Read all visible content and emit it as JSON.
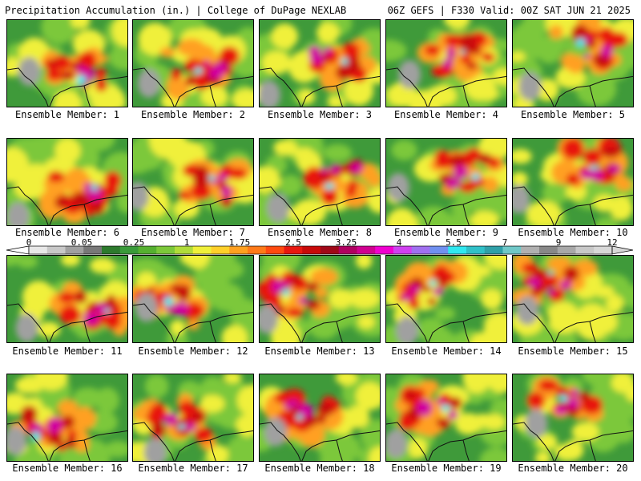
{
  "header": {
    "left_title": "Precipitation Accumulation (in.) | College of DuPage NEXLAB",
    "right_title": "06Z GEFS | F330 Valid: 00Z SAT JUN 21 2025"
  },
  "members": [
    {
      "label": "Ensemble Member: 1"
    },
    {
      "label": "Ensemble Member: 2"
    },
    {
      "label": "Ensemble Member: 3"
    },
    {
      "label": "Ensemble Member: 4"
    },
    {
      "label": "Ensemble Member: 5"
    },
    {
      "label": "Ensemble Member: 6"
    },
    {
      "label": "Ensemble Member: 7"
    },
    {
      "label": "Ensemble Member: 8"
    },
    {
      "label": "Ensemble Member: 9"
    },
    {
      "label": "Ensemble Member: 10"
    },
    {
      "label": "Ensemble Member: 11"
    },
    {
      "label": "Ensemble Member: 12"
    },
    {
      "label": "Ensemble Member: 13"
    },
    {
      "label": "Ensemble Member: 14"
    },
    {
      "label": "Ensemble Member: 15"
    },
    {
      "label": "Ensemble Member: 16"
    },
    {
      "label": "Ensemble Member: 17"
    },
    {
      "label": "Ensemble Member: 18"
    },
    {
      "label": "Ensemble Member: 19"
    },
    {
      "label": "Ensemble Member: 20"
    }
  ],
  "colorbar": {
    "tick_labels": [
      "0",
      "0.05",
      "0.25",
      "1",
      "1.75",
      "2.5",
      "3.25",
      "4",
      "5.5",
      "7",
      "9",
      "12"
    ],
    "colors": [
      "#e8e8e8",
      "#c8c8c8",
      "#a0a0a0",
      "#787878",
      "#2d7a2d",
      "#3a9a3a",
      "#55b030",
      "#7cc83a",
      "#b0dc3a",
      "#f0f03a",
      "#ffd02a",
      "#ffa020",
      "#ff7a18",
      "#ff4a10",
      "#e81810",
      "#c80a0a",
      "#a00818",
      "#b00060",
      "#d00090",
      "#f000d0",
      "#d040f0",
      "#a070f0",
      "#7090f0",
      "#30e8f0",
      "#30c0c8",
      "#30a0a8",
      "#70c8c8",
      "#b0b0b0",
      "#888888",
      "#a8a8a8",
      "#c8c8c8",
      "#d8d8d8"
    ]
  }
}
